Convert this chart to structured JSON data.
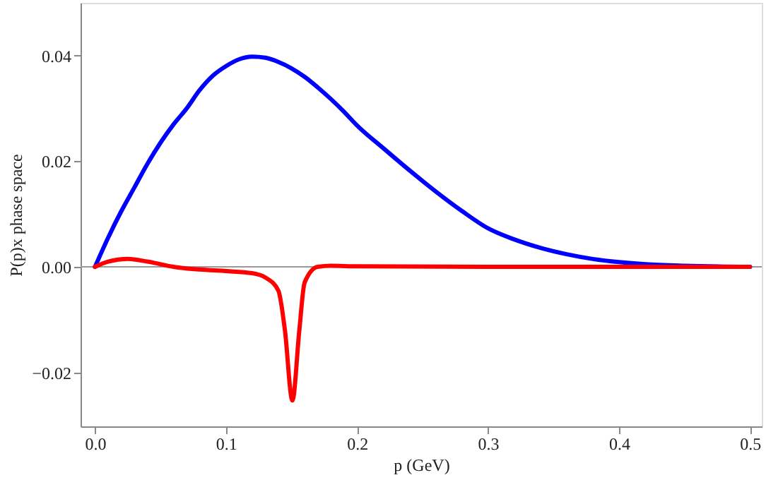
{
  "chart_data": {
    "type": "line",
    "xlabel": "p (GeV)",
    "ylabel": "P(p)x phase space",
    "xlim": [
      -0.011,
      0.509
    ],
    "ylim": [
      -0.0302,
      0.05
    ],
    "xticks": [
      {
        "value": 0,
        "label": "0.0"
      },
      {
        "value": 0.1,
        "label": "0.1"
      },
      {
        "value": 0.2,
        "label": "0.2"
      },
      {
        "value": 0.3,
        "label": "0.3"
      },
      {
        "value": 0.4,
        "label": "0.4"
      },
      {
        "value": 0.5,
        "label": "0.5"
      }
    ],
    "yticks": [
      {
        "value": -0.02,
        "label": "−0.02"
      },
      {
        "value": 0,
        "label": "0.00"
      },
      {
        "value": 0.02,
        "label": "0.02"
      },
      {
        "value": 0.04,
        "label": "0.04"
      }
    ],
    "grid": false,
    "line_style": "solid",
    "marker": "none",
    "ref_lines": [
      {
        "axis": "y",
        "value": 0,
        "color": "#999999"
      }
    ],
    "series": [
      {
        "color": "#0000ff",
        "x": [
          0,
          0.01,
          0.02,
          0.03,
          0.04,
          0.05,
          0.06,
          0.07,
          0.08,
          0.09,
          0.1,
          0.11,
          0.12,
          0.13,
          0.14,
          0.15,
          0.16,
          0.17,
          0.18,
          0.19,
          0.2,
          0.22,
          0.24,
          0.26,
          0.28,
          0.3,
          0.32,
          0.34,
          0.36,
          0.38,
          0.4,
          0.42,
          0.45,
          0.5
        ],
        "values": [
          0,
          0.0055,
          0.0105,
          0.015,
          0.0195,
          0.0235,
          0.027,
          0.03,
          0.0335,
          0.0362,
          0.038,
          0.0393,
          0.0398,
          0.0396,
          0.0388,
          0.0376,
          0.036,
          0.034,
          0.0318,
          0.0294,
          0.0268,
          0.0225,
          0.0183,
          0.0143,
          0.0106,
          0.0073,
          0.0052,
          0.0036,
          0.0024,
          0.0015,
          0.0009,
          0.0005,
          0.0002,
          0
        ]
      },
      {
        "color": "#ff0000",
        "x": [
          0,
          0.01,
          0.025,
          0.04,
          0.06,
          0.08,
          0.1,
          0.12,
          0.13,
          0.14,
          0.145,
          0.1507,
          0.156,
          0.16,
          0.17,
          0.18,
          0.2,
          0.3,
          0.5
        ],
        "values": [
          0,
          0.001,
          0.0015,
          0.001,
          0,
          -0.0005,
          -0.0008,
          -0.0012,
          -0.002,
          -0.0045,
          -0.012,
          -0.0253,
          -0.012,
          -0.003,
          0,
          0.0002,
          0.0001,
          0,
          0
        ]
      }
    ]
  }
}
